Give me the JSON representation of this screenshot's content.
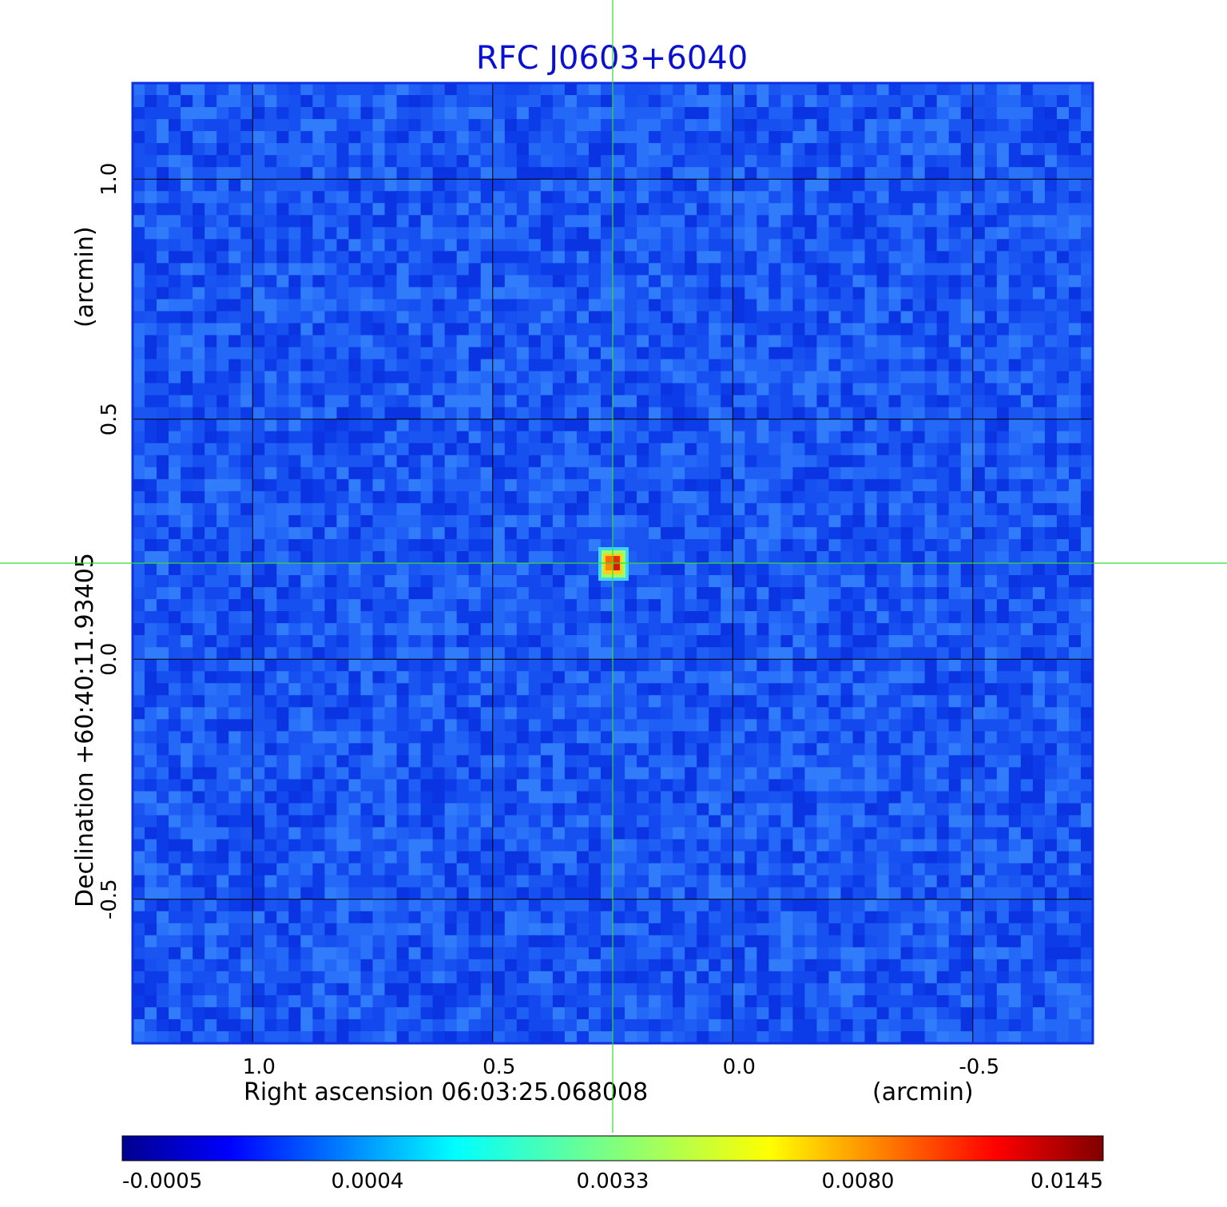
{
  "chart_data": {
    "type": "heatmap",
    "title": "RFC J0603+6040",
    "xlabel": "Right ascension  06:03:25.068008",
    "xunit": "(arcmin)",
    "ylabel": "Declination  +60:40:11.93405",
    "yunit": "(arcmin)",
    "xlim": [
      1.25,
      -0.75
    ],
    "ylim": [
      -0.8,
      1.2
    ],
    "x_ticks": [
      {
        "value": 1.0,
        "label": "1.0"
      },
      {
        "value": 0.5,
        "label": "0.5"
      },
      {
        "value": 0.0,
        "label": "0.0"
      },
      {
        "value": -0.5,
        "label": "-0.5"
      }
    ],
    "y_ticks": [
      {
        "value": 1.0,
        "label": "1.0"
      },
      {
        "value": 0.5,
        "label": "0.5"
      },
      {
        "value": 0.0,
        "label": "0.0"
      },
      {
        "value": -0.5,
        "label": "-0.5"
      }
    ],
    "grid": true,
    "crosshair": {
      "x": 0.25,
      "y": 0.2
    },
    "source_peak": {
      "x": 0.25,
      "y": 0.2,
      "value": 0.0145
    },
    "colorbar": {
      "colormap": "jet",
      "ticks": [
        {
          "value": -0.0005,
          "label": "-0.0005"
        },
        {
          "value": 0.0004,
          "label": "0.0004"
        },
        {
          "value": 0.0033,
          "label": "0.0033"
        },
        {
          "value": 0.008,
          "label": "0.0080"
        },
        {
          "value": 0.0145,
          "label": "0.0145"
        }
      ]
    },
    "colors": {
      "title": "#0a10d0",
      "crosshair": "#33dd33",
      "grid": "#000000",
      "frame": "#1030e0"
    }
  }
}
